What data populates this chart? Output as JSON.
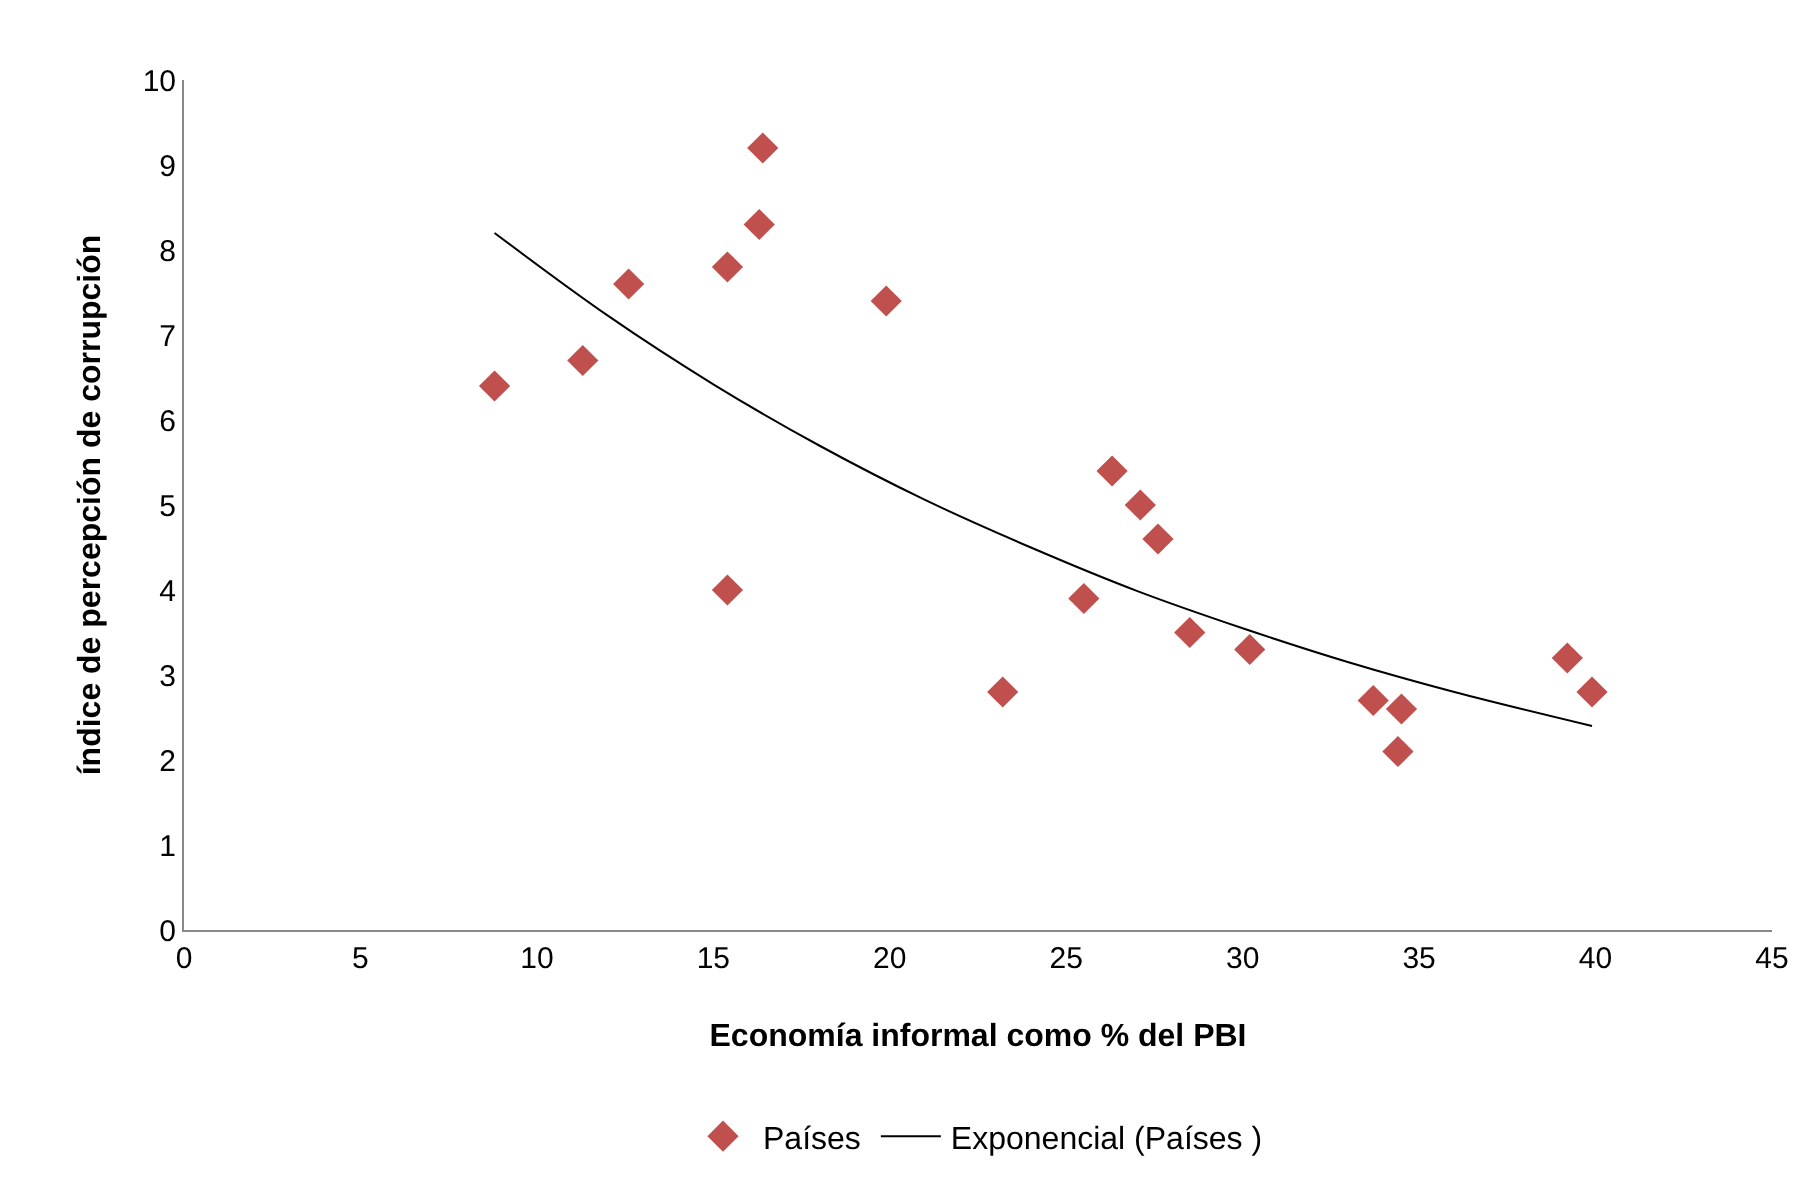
{
  "chart_data": {
    "type": "scatter",
    "xlabel": "Economía informal como % del PBI",
    "ylabel": "índice de percepción de corrupción",
    "xlim": [
      0,
      45
    ],
    "xticks": [
      0,
      5,
      10,
      15,
      20,
      25,
      30,
      35,
      40,
      45
    ],
    "ylim": [
      0,
      10
    ],
    "yticks": [
      0,
      1,
      2,
      3,
      4,
      5,
      6,
      7,
      8,
      9,
      10
    ],
    "grid": false,
    "legend": "bottom",
    "series": [
      {
        "name": "Países",
        "marker": "diamond",
        "color": "#c0504d",
        "x": [
          8.8,
          11.3,
          12.6,
          15.4,
          16.3,
          16.4,
          19.9,
          15.4,
          23.2,
          25.5,
          26.3,
          27.1,
          27.6,
          28.5,
          30.2,
          33.7,
          34.5,
          34.4,
          39.2,
          39.9
        ],
        "values": [
          6.4,
          6.7,
          7.6,
          7.8,
          8.3,
          9.2,
          7.4,
          4.0,
          2.8,
          3.9,
          5.4,
          5.0,
          4.6,
          3.5,
          3.3,
          2.7,
          2.6,
          2.1,
          3.2,
          2.8
        ]
      },
      {
        "name": "Exponencial (Países )",
        "type": "line",
        "marker": "none",
        "color": "#000000",
        "line_style": "solid",
        "x": [
          8.8,
          12,
          15,
          18,
          21,
          24,
          27,
          30,
          33,
          36,
          39.9
        ],
        "values": [
          8.2,
          7.23,
          6.42,
          5.7,
          5.06,
          4.5,
          3.99,
          3.55,
          3.15,
          2.8,
          2.4
        ]
      }
    ]
  }
}
